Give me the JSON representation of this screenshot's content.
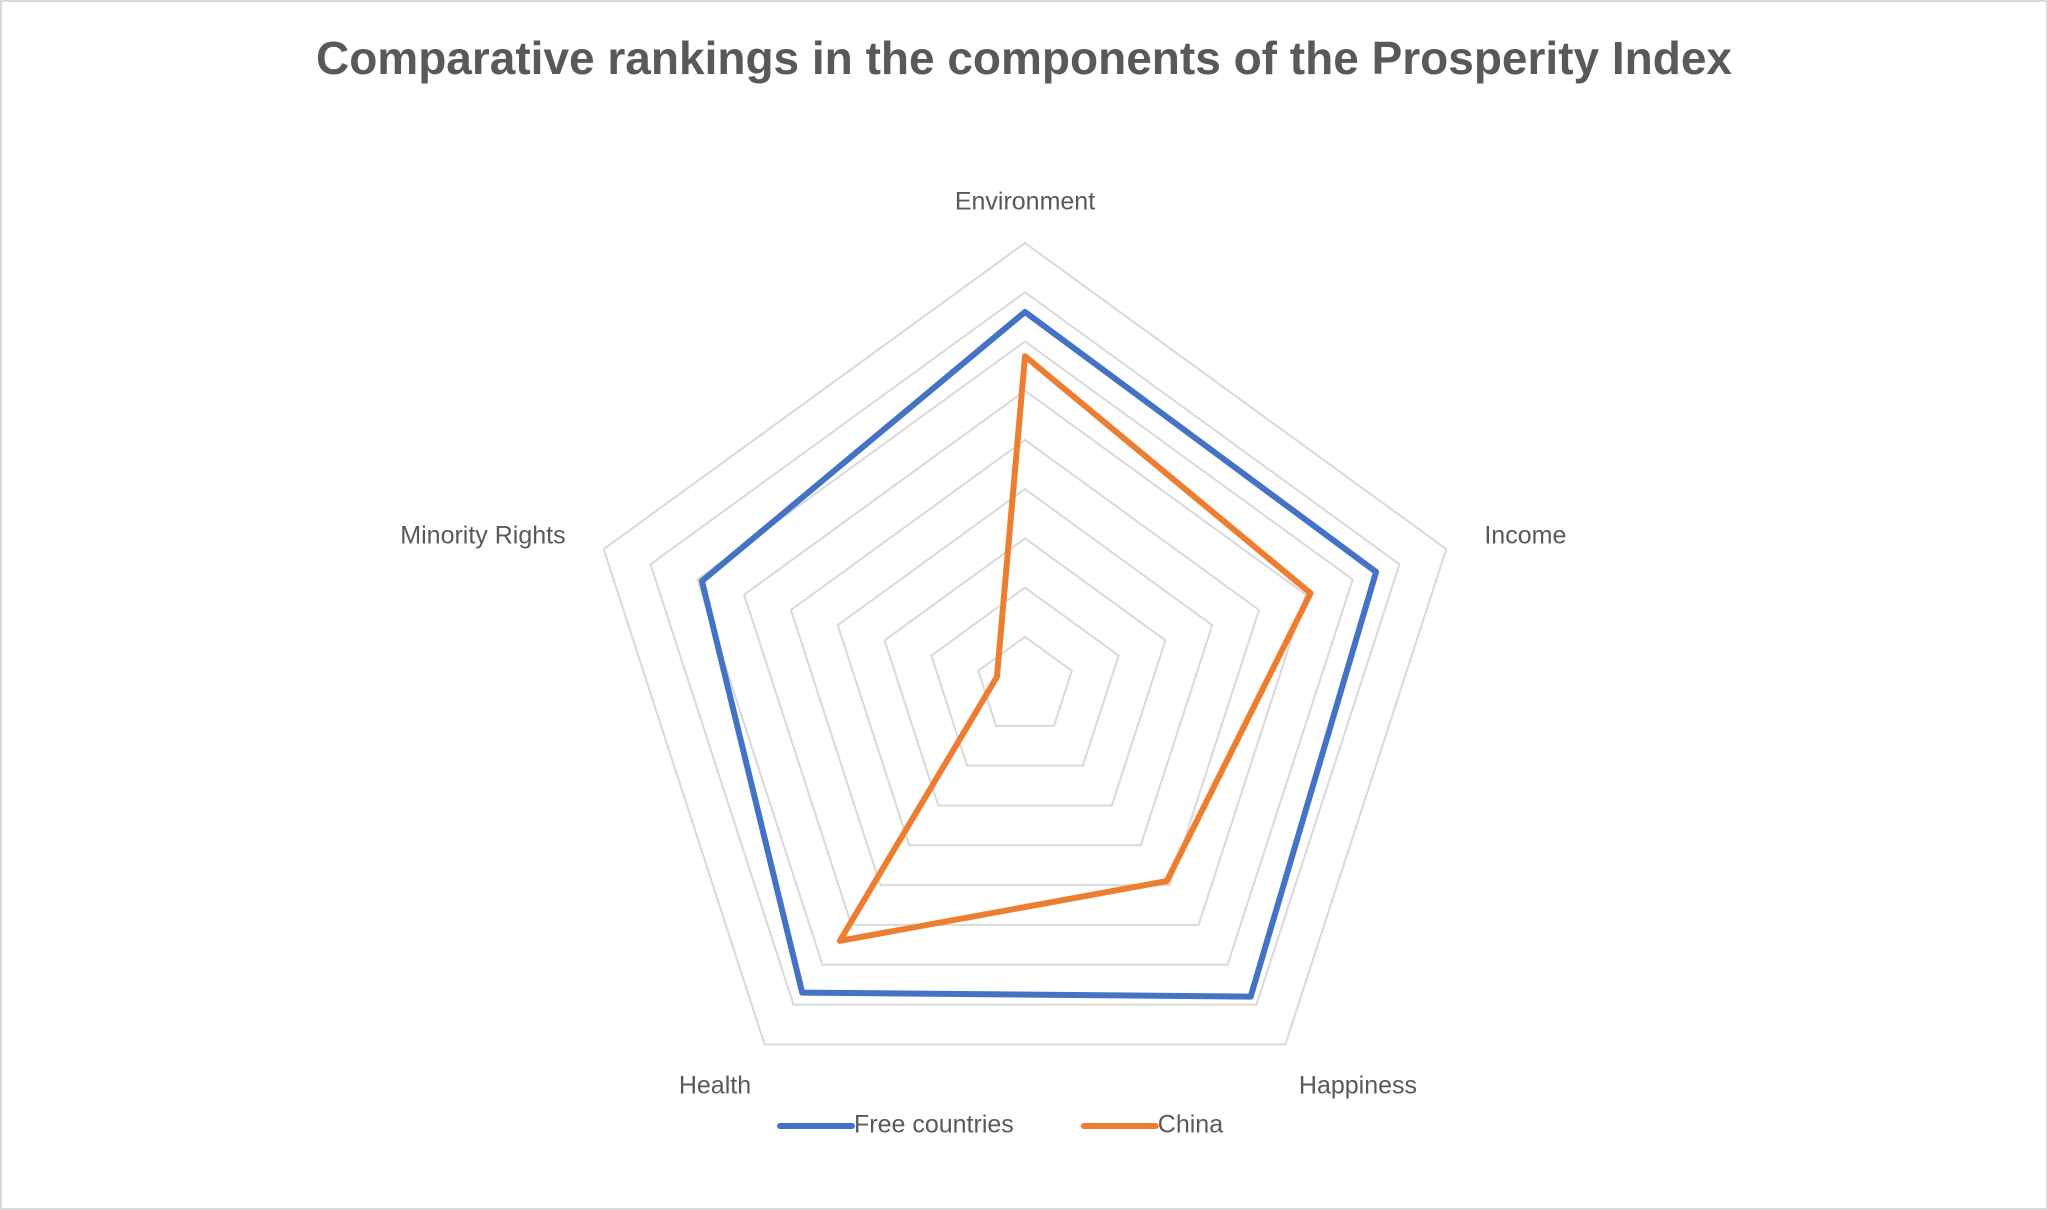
{
  "chart_data": {
    "type": "radar",
    "title": "Comparative rankings in the components of the Prosperity Index",
    "categories": [
      "Environment",
      "Income",
      "Happiness",
      "Health",
      "Minority Rights"
    ],
    "series": [
      {
        "name": "Free countries",
        "color": "#4472c4",
        "values": [
          7.6,
          7.5,
          7.8,
          7.7,
          6.9
        ]
      },
      {
        "name": "China",
        "color": "#ed7d31",
        "values": [
          6.7,
          6.1,
          4.9,
          6.4,
          0.6
        ]
      }
    ],
    "ylim": [
      0,
      9
    ],
    "yticks": [
      1,
      2,
      3,
      4,
      5,
      6,
      7,
      8,
      9
    ],
    "grid": true,
    "legend": "bottom"
  }
}
